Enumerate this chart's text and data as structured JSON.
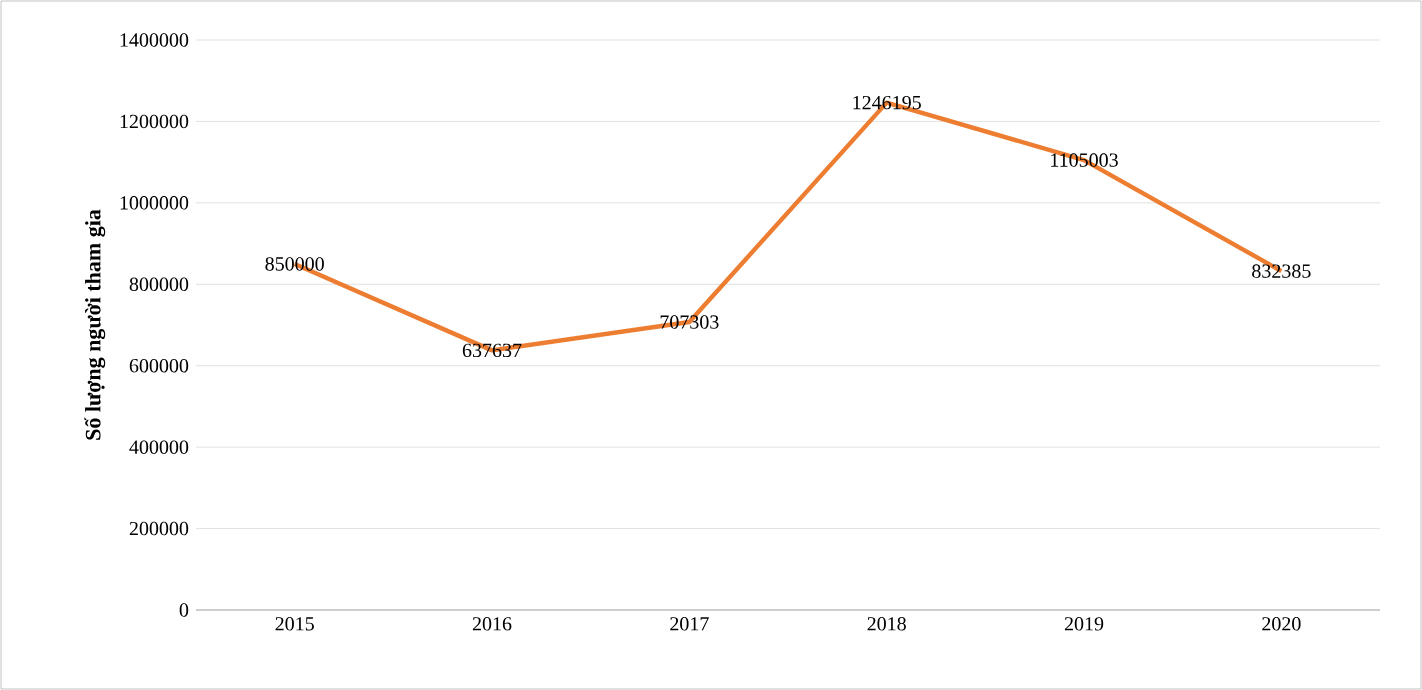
{
  "chart_data": {
    "type": "line",
    "ylabel": "Số lượng người tham gia",
    "categories": [
      "2015",
      "2016",
      "2017",
      "2018",
      "2019",
      "2020"
    ],
    "series": [
      {
        "color": "#ed7d31",
        "values": [
          850000,
          637637,
          707303,
          1246195,
          1105003,
          832385
        ]
      }
    ],
    "ylim": [
      0,
      1400000
    ],
    "yticks": [
      0,
      200000,
      400000,
      600000,
      800000,
      1000000,
      1200000,
      1400000
    ],
    "grid": "y",
    "data_labels": true,
    "marker": "none",
    "line_style": "solid"
  }
}
